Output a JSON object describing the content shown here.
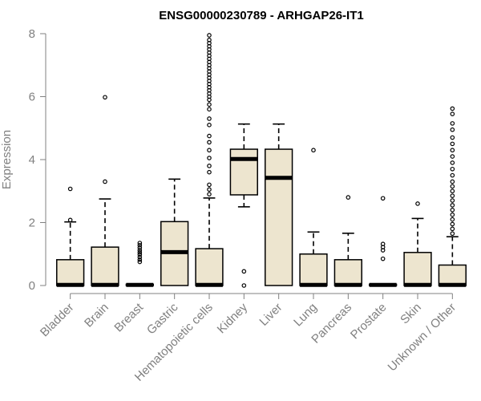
{
  "chart_data": {
    "type": "box",
    "title": "ENSG00000230789 - ARHGAP26-IT1",
    "xlabel": "",
    "ylabel": "Expression",
    "ylim": [
      0,
      8
    ],
    "yticks": [
      "0",
      "2",
      "4",
      "6",
      "8"
    ],
    "colors": {
      "box_fill": "#ede5cf",
      "stroke": "#000000",
      "axis": "#808080"
    },
    "categories": [
      "Bladder",
      "Brain",
      "Breast",
      "Gastric",
      "Hematopoietic cells",
      "Kidney",
      "Liver",
      "Lung",
      "Pancreas",
      "Prostate",
      "Skin",
      "Unknown / Other"
    ],
    "series": [
      {
        "name": "Bladder",
        "q1": 0,
        "median": 0.02,
        "q3": 0.82,
        "whisker_low": 0,
        "whisker_high": 2.02,
        "outliers": [
          2.08,
          3.07
        ]
      },
      {
        "name": "Brain",
        "q1": 0,
        "median": 0.02,
        "q3": 1.22,
        "whisker_low": 0,
        "whisker_high": 2.75,
        "outliers": [
          3.3,
          5.98
        ]
      },
      {
        "name": "Breast",
        "q1": 0,
        "median": 0.02,
        "q3": 0.04,
        "whisker_low": 0,
        "whisker_high": 0.05,
        "outliers": [
          0.75,
          0.82,
          0.9,
          0.98,
          1.05,
          1.12,
          1.2,
          1.28,
          1.35
        ]
      },
      {
        "name": "Gastric",
        "q1": 0,
        "median": 1.06,
        "q3": 2.03,
        "whisker_low": 0,
        "whisker_high": 3.38,
        "outliers": []
      },
      {
        "name": "Hematopoietic cells",
        "q1": 0,
        "median": 0.02,
        "q3": 1.17,
        "whisker_low": 0,
        "whisker_high": 2.78,
        "outliers": [
          2.9,
          3.05,
          3.2,
          3.6,
          3.8,
          4.05,
          4.3,
          4.55,
          4.75,
          5.1,
          5.3,
          5.6,
          5.75,
          5.9,
          6.0,
          6.1,
          6.2,
          6.3,
          6.4,
          6.5,
          6.6,
          6.7,
          6.8,
          6.9,
          7.0,
          7.1,
          7.2,
          7.3,
          7.4,
          7.5,
          7.6,
          7.7,
          7.8,
          7.95
        ]
      },
      {
        "name": "Kidney",
        "q1": 2.88,
        "median": 4.02,
        "q3": 4.33,
        "whisker_low": 2.5,
        "whisker_high": 5.13,
        "outliers": [
          0.45,
          0.0
        ]
      },
      {
        "name": "Liver",
        "q1": 0,
        "median": 3.42,
        "q3": 4.33,
        "whisker_low": 0,
        "whisker_high": 5.13,
        "outliers": []
      },
      {
        "name": "Lung",
        "q1": 0,
        "median": 0.02,
        "q3": 1.0,
        "whisker_low": 0,
        "whisker_high": 1.7,
        "outliers": [
          4.3
        ]
      },
      {
        "name": "Pancreas",
        "q1": 0,
        "median": 0.02,
        "q3": 0.82,
        "whisker_low": 0,
        "whisker_high": 1.66,
        "outliers": [
          2.8
        ]
      },
      {
        "name": "Prostate",
        "q1": 0,
        "median": 0.02,
        "q3": 0.04,
        "whisker_low": 0,
        "whisker_high": 0.05,
        "outliers": [
          0.85,
          1.12,
          1.22,
          1.32,
          2.77
        ]
      },
      {
        "name": "Skin",
        "q1": 0,
        "median": 0.02,
        "q3": 1.05,
        "whisker_low": 0,
        "whisker_high": 2.13,
        "outliers": [
          2.6
        ]
      },
      {
        "name": "Unknown / Other",
        "q1": 0,
        "median": 0.02,
        "q3": 0.65,
        "whisker_low": 0,
        "whisker_high": 1.55,
        "outliers": [
          1.65,
          1.8,
          1.95,
          2.1,
          2.25,
          2.4,
          2.55,
          2.7,
          2.85,
          3.0,
          3.15,
          3.3,
          3.5,
          3.7,
          3.9,
          4.1,
          4.3,
          4.5,
          4.7,
          4.95,
          5.15,
          5.45,
          5.62
        ]
      }
    ]
  }
}
